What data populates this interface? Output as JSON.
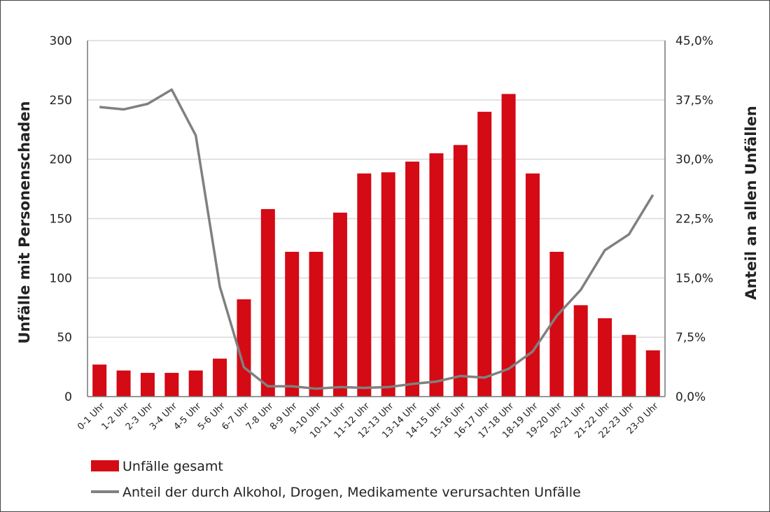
{
  "chart_data": {
    "type": "bar+line",
    "categories": [
      "0-1 Uhr",
      "1-2 Uhr",
      "2-3 Uhr",
      "3-4 Uhr",
      "4-5 Uhr",
      "5-6 Uhr",
      "6-7 Uhr",
      "7-8 Uhr",
      "8-9 Uhr",
      "9-10 Uhr",
      "10-11 Uhr",
      "11-12 Uhr",
      "12-13 Uhr",
      "13-14 Uhr",
      "14-15 Uhr",
      "15-16 Uhr",
      "16-17 Uhr",
      "17-18 Uhr",
      "18-19 Uhr",
      "19-20 Uhr",
      "20-21 Uhr",
      "21-22 Uhr",
      "22-23 Uhr",
      "23-0 Uhr"
    ],
    "series": [
      {
        "name": "Unfälle gesamt",
        "type": "bar",
        "axis": "left",
        "color": "#d40a14",
        "values": [
          27,
          22,
          20,
          20,
          22,
          32,
          82,
          158,
          122,
          122,
          155,
          188,
          189,
          198,
          205,
          212,
          240,
          255,
          188,
          122,
          77,
          66,
          52,
          39
        ]
      },
      {
        "name": "Anteil der durch Alkohol, Drogen, Medikamente verursachten Unfälle",
        "type": "line",
        "axis": "right",
        "color": "#808080",
        "values": [
          36.6,
          36.3,
          37.0,
          38.8,
          33.0,
          13.9,
          3.7,
          1.3,
          1.3,
          1.0,
          1.2,
          1.1,
          1.2,
          1.6,
          1.9,
          2.6,
          2.4,
          3.5,
          5.7,
          10.2,
          13.5,
          18.5,
          20.5,
          25.5
        ]
      }
    ],
    "ylabel": "Unfälle mit Personenschaden",
    "ylabel_right": "Anteil an allen Unfällen",
    "ylim": [
      0,
      300
    ],
    "yticks": [
      "0",
      "50",
      "100",
      "150",
      "200",
      "250",
      "300"
    ],
    "ylim_right": [
      0,
      45
    ],
    "yticks_right": [
      "0,0%",
      "7,5%",
      "15,0%",
      "22,5%",
      "30,0%",
      "37,5%",
      "45,0%"
    ],
    "grid": true,
    "legend": "bottom-left"
  }
}
